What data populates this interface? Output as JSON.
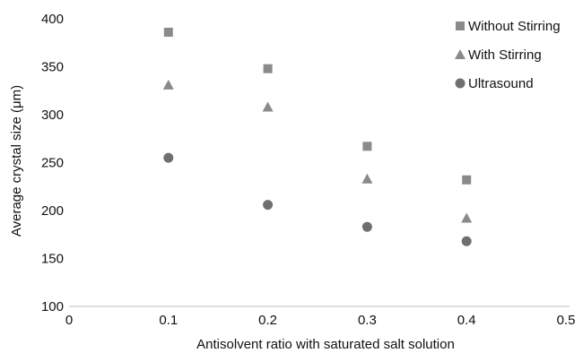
{
  "chart_data": {
    "type": "scatter",
    "title": "",
    "xlabel": "Antisolvent ratio with saturated salt solution",
    "ylabel": "Average crystal size (μm)",
    "xlim": [
      0,
      0.5
    ],
    "ylim": [
      100,
      400
    ],
    "xticks": [
      0,
      0.1,
      0.2,
      0.3,
      0.4,
      0.5
    ],
    "xtick_labels": [
      "0",
      "0.1",
      "0.2",
      "0.3",
      "0.4",
      "0.5"
    ],
    "yticks": [
      100,
      150,
      200,
      250,
      300,
      350,
      400
    ],
    "ytick_labels": [
      "100",
      "150",
      "200",
      "250",
      "300",
      "350",
      "400"
    ],
    "grid": false,
    "legend_position": "top-right",
    "series": [
      {
        "name": "Without Stirring",
        "marker": "square",
        "color": "#8a8a8a",
        "points": [
          {
            "x": 0.1,
            "y": 386
          },
          {
            "x": 0.2,
            "y": 348
          },
          {
            "x": 0.3,
            "y": 267
          },
          {
            "x": 0.4,
            "y": 232
          }
        ]
      },
      {
        "name": "With Stirring",
        "marker": "triangle",
        "color": "#8a8a8a",
        "points": [
          {
            "x": 0.1,
            "y": 331
          },
          {
            "x": 0.2,
            "y": 308
          },
          {
            "x": 0.3,
            "y": 233
          },
          {
            "x": 0.4,
            "y": 192
          }
        ]
      },
      {
        "name": "Ultrasound",
        "marker": "circle",
        "color": "#6f6f6f",
        "points": [
          {
            "x": 0.1,
            "y": 255
          },
          {
            "x": 0.2,
            "y": 206
          },
          {
            "x": 0.3,
            "y": 183
          },
          {
            "x": 0.4,
            "y": 168
          }
        ]
      }
    ]
  }
}
